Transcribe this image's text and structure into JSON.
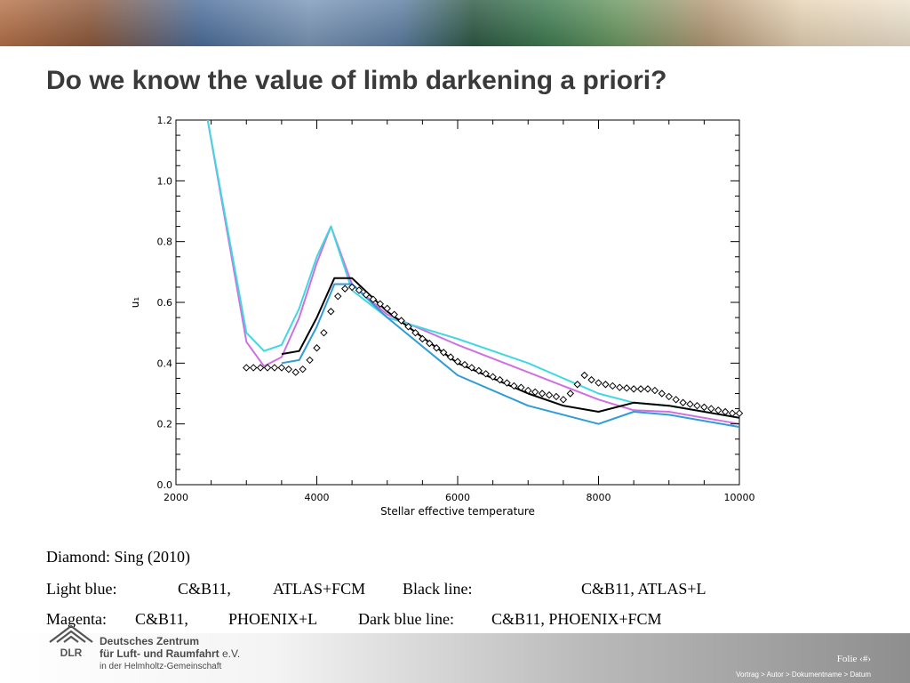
{
  "title": "Do we know the value of limb darkening a priori?",
  "chart_data": {
    "type": "line",
    "title": "",
    "xlabel": "Stellar effective temperature",
    "ylabel": "u₁",
    "xlim": [
      2000,
      10000
    ],
    "ylim": [
      0.0,
      1.2
    ],
    "xticks": [
      2000,
      4000,
      6000,
      8000,
      10000
    ],
    "xtick_labels": [
      "2000",
      "4000",
      "6000",
      "8000",
      "10000"
    ],
    "yticks": [
      0.0,
      0.2,
      0.4,
      0.6,
      0.8,
      1.0,
      1.2
    ],
    "ytick_labels": [
      "0.0",
      "0.2",
      "0.4",
      "0.6",
      "0.8",
      "1.0",
      "1.2"
    ],
    "grid": false,
    "legend": "none",
    "series": [
      {
        "name": "Magenta",
        "color": "#d070e0",
        "style": "line",
        "x": [
          2450,
          3000,
          3250,
          3500,
          3750,
          4000,
          4200,
          4500,
          5000,
          6000,
          7000,
          8000,
          8500,
          9000,
          10000
        ],
        "y": [
          1.2,
          0.47,
          0.39,
          0.42,
          0.55,
          0.73,
          0.85,
          0.66,
          0.56,
          0.46,
          0.37,
          0.28,
          0.245,
          0.24,
          0.2
        ]
      },
      {
        "name": "Light blue",
        "color": "#40d8e0",
        "style": "line",
        "x": [
          2450,
          3000,
          3250,
          3500,
          3750,
          4000,
          4200,
          4500,
          5000,
          6000,
          7000,
          8000,
          8500,
          9000,
          10000
        ],
        "y": [
          1.2,
          0.5,
          0.44,
          0.46,
          0.58,
          0.75,
          0.85,
          0.64,
          0.55,
          0.48,
          0.4,
          0.3,
          0.27,
          0.26,
          0.22
        ]
      },
      {
        "name": "Black line",
        "color": "#000000",
        "style": "line",
        "x": [
          3500,
          3750,
          4000,
          4250,
          4500,
          5000,
          6000,
          7000,
          7500,
          8000,
          8500,
          9000,
          10000
        ],
        "y": [
          0.43,
          0.44,
          0.55,
          0.68,
          0.68,
          0.57,
          0.4,
          0.3,
          0.26,
          0.24,
          0.27,
          0.26,
          0.22
        ]
      },
      {
        "name": "Dark blue line",
        "color": "#2f9bd8",
        "style": "line",
        "x": [
          3500,
          3750,
          4000,
          4250,
          4500,
          5000,
          6000,
          7000,
          8000,
          8500,
          9000,
          10000
        ],
        "y": [
          0.4,
          0.41,
          0.52,
          0.66,
          0.66,
          0.55,
          0.36,
          0.26,
          0.2,
          0.24,
          0.23,
          0.19
        ]
      },
      {
        "name": "Diamond",
        "color": "#000000",
        "style": "markers",
        "x": [
          3000,
          3100,
          3200,
          3300,
          3400,
          3500,
          3600,
          3700,
          3800,
          3900,
          4000,
          4100,
          4200,
          4300,
          4400,
          4500,
          4600,
          4700,
          4800,
          4900,
          5000,
          5100,
          5200,
          5300,
          5400,
          5500,
          5600,
          5700,
          5800,
          5900,
          6000,
          6100,
          6200,
          6300,
          6400,
          6500,
          6600,
          6700,
          6800,
          6900,
          7000,
          7100,
          7200,
          7300,
          7400,
          7500,
          7600,
          7700,
          7800,
          7900,
          8000,
          8100,
          8200,
          8300,
          8400,
          8500,
          8600,
          8700,
          8800,
          8900,
          9000,
          9100,
          9200,
          9300,
          9400,
          9500,
          9600,
          9700,
          9800,
          9900,
          10000
        ],
        "y": [
          0.385,
          0.385,
          0.385,
          0.385,
          0.385,
          0.385,
          0.38,
          0.37,
          0.38,
          0.41,
          0.45,
          0.5,
          0.57,
          0.62,
          0.645,
          0.65,
          0.64,
          0.625,
          0.61,
          0.595,
          0.58,
          0.56,
          0.54,
          0.52,
          0.5,
          0.48,
          0.465,
          0.45,
          0.435,
          0.42,
          0.405,
          0.395,
          0.385,
          0.375,
          0.365,
          0.355,
          0.345,
          0.335,
          0.325,
          0.32,
          0.31,
          0.305,
          0.3,
          0.295,
          0.29,
          0.28,
          0.3,
          0.33,
          0.36,
          0.345,
          0.335,
          0.33,
          0.325,
          0.32,
          0.318,
          0.315,
          0.315,
          0.315,
          0.31,
          0.3,
          0.29,
          0.28,
          0.27,
          0.265,
          0.26,
          0.255,
          0.25,
          0.245,
          0.24,
          0.235,
          0.235
        ]
      }
    ]
  },
  "captions": {
    "line1": "Diamond: Sing (2010)",
    "line2": {
      "a_label": "Light blue:",
      "a_model": "C&B11,",
      "a_code": "ATLAS+FCM",
      "b_label": "Black line:",
      "b_model": "C&B11, ATLAS+L"
    },
    "line3": {
      "a_label": "Magenta:",
      "a_model": "C&B11,",
      "a_code": "PHOENIX+L",
      "b_label": "Dark blue line:",
      "b_model": "C&B11, PHOENIX+FCM"
    }
  },
  "footer": {
    "org_line1": "Deutsches Zentrum",
    "org_line2": "für Luft- und Raumfahrt",
    "org_suffix": "e.V.",
    "org_line3": "in der Helmholtz-Gemeinschaft",
    "logo_text": "DLR",
    "page_label": "Folie ‹#›",
    "trail": "Vortrag > Autor > Dokumentname > Datum"
  }
}
